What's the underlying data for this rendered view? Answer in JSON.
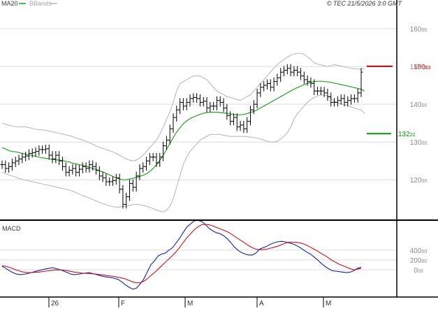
{
  "header": {
    "legend": [
      {
        "label": "MA20",
        "color": "#1fa51f"
      },
      {
        "label": "BBands",
        "color": "#a8a8a8"
      }
    ],
    "stamp": "© TEC 21/5/2026 3:0 GMT"
  },
  "colors": {
    "price_bars": "#000000",
    "ma20": "#1fa51f",
    "bbands": "#b4b4b4",
    "macd_line": "#1020c0",
    "signal_line": "#d01010",
    "resistance": "#cc0000",
    "support": "#009900",
    "grid": "#dcdcdc",
    "frame": "#000000"
  },
  "chart_data": [
    {
      "type": "ohlc",
      "y_ticks": [
        {
          "value": 120,
          "int": "120",
          "dec": "00"
        },
        {
          "value": 130,
          "int": "130",
          "dec": "00"
        },
        {
          "value": 140,
          "int": "140",
          "dec": "00"
        },
        {
          "value": 150,
          "int": "150",
          "dec": "00"
        },
        {
          "value": 160,
          "int": "160",
          "dec": "00"
        }
      ],
      "ylim": [
        109.5,
        165
      ],
      "grid": true,
      "x_labels": [
        "26",
        "F",
        "M",
        "A",
        "M"
      ],
      "resistance": {
        "value": 150.03,
        "int": "150",
        "dec": "03"
      },
      "support": {
        "value": 132.22,
        "int": "132",
        "dec": "22"
      },
      "close": [
        124,
        123,
        123.5,
        124.5,
        125,
        125.5,
        126,
        126.3,
        127,
        127.2,
        127.5,
        128,
        128,
        128.2,
        126.5,
        125.5,
        126.5,
        125,
        123.5,
        122,
        122.5,
        123,
        122,
        122.8,
        123.5,
        123,
        124,
        123.5,
        122.5,
        121,
        120.5,
        119.5,
        119.5,
        119.8,
        120.5,
        117.5,
        113.5,
        115.5,
        119,
        118,
        121,
        123,
        123.5,
        125,
        126,
        126,
        124.5,
        126,
        129,
        130.5,
        133.5,
        136.5,
        138.5,
        140.5,
        139.5,
        140.5,
        141.5,
        141.8,
        141.5,
        140.5,
        140.8,
        139,
        139.5,
        139.5,
        141,
        140.5,
        139,
        137,
        135.5,
        136.5,
        134,
        134.5,
        133.5,
        135.5,
        138.5,
        140,
        143,
        144.5,
        145,
        145.5,
        144.5,
        146,
        147,
        148.5,
        149,
        149.5,
        148.5,
        149,
        148.5,
        147.5,
        146.5,
        146,
        145.5,
        143.5,
        143.5,
        143.5,
        143,
        142,
        140.5,
        140.5,
        141,
        141.5,
        140.5,
        141,
        141.5,
        141.5,
        143,
        148.5
      ],
      "ma20": [
        128.5,
        128.2,
        127.7,
        127.5,
        127.4,
        127.2,
        127,
        126.8,
        126.6,
        126.4,
        126.2,
        126,
        125.8,
        125.7,
        125.5,
        125.4,
        125.3,
        125.2,
        125.1,
        124.9,
        124.7,
        124.4,
        124.2,
        124,
        123.8,
        123.6,
        123.3,
        123,
        122.7,
        122.4,
        122.1,
        121.7,
        121.3,
        120.9,
        120.5,
        120.2,
        120,
        120,
        120.2,
        120.4,
        120.6,
        120.9,
        121.2,
        121.6,
        122.2,
        123,
        124,
        125.2,
        126.5,
        128,
        129.6,
        131.2,
        132.6,
        133.8,
        134.8,
        135.6,
        136.2,
        136.6,
        137,
        137.3,
        137.6,
        137.8,
        137.9,
        137.9,
        137.9,
        137.8,
        137.7,
        137.6,
        137.4,
        137.3,
        137.2,
        137.2,
        137.3,
        137.5,
        137.8,
        138.1,
        138.5,
        139,
        139.5,
        140,
        140.5,
        141,
        141.5,
        142,
        142.5,
        143,
        143.5,
        144,
        144.4,
        144.8,
        145.2,
        145.5,
        145.8,
        146,
        146.1,
        146.1,
        146,
        145.9,
        145.8,
        145.6,
        145.4,
        145.2,
        145,
        144.8,
        144.6,
        144.4,
        144.2,
        144,
        143.5
      ],
      "bb_upper": [
        135,
        134.7,
        134.4,
        134.2,
        134.1,
        134,
        134,
        134,
        133.8,
        133.6,
        133.4,
        133.3,
        133.2,
        133.1,
        132.9,
        132.7,
        132.5,
        132.3,
        132.1,
        131.9,
        131.7,
        131.4,
        131.1,
        130.8,
        130.5,
        130.2,
        129.8,
        129.4,
        129,
        128.6,
        128.3,
        128,
        127.7,
        127.4,
        127,
        126.5,
        126,
        125.5,
        125.2,
        125,
        125.2,
        125.8,
        126.5,
        127.5,
        128.5,
        129.5,
        130.5,
        132,
        134,
        136,
        138,
        140.5,
        143.5,
        145.5,
        146,
        146.5,
        147,
        147.5,
        147.5,
        147.5,
        147,
        146.5,
        145.5,
        144.5,
        143.5,
        143,
        142.5,
        142,
        141.8,
        141.5,
        141.2,
        141,
        141.5,
        142,
        142.5,
        143.5,
        144.5,
        145.5,
        146.5,
        147.5,
        148.5,
        149.5,
        150.5,
        151.2,
        151.8,
        152.5,
        153,
        153.3,
        153.5,
        153.5,
        153.2,
        152.5,
        151.8,
        151,
        150.6,
        150.4,
        150.2,
        150,
        150.2,
        150.5,
        150.3,
        150.1,
        149.9,
        149.7,
        149.5,
        149.4,
        149.3,
        149.2,
        149.5
      ],
      "bb_lower": [
        122,
        121.7,
        121.3,
        121,
        120.7,
        120.4,
        120.1,
        119.9,
        119.7,
        119.5,
        119.3,
        119.1,
        118.9,
        118.7,
        118.5,
        118.3,
        118.1,
        117.9,
        117.7,
        117.5,
        117.3,
        117,
        116.6,
        116.2,
        115.8,
        115.5,
        115.2,
        114.8,
        114.4,
        114,
        113.7,
        113.4,
        113.1,
        112.9,
        112.8,
        112.8,
        112.9,
        113,
        113.2,
        113.4,
        113.5,
        113.4,
        113.2,
        113,
        112.7,
        112.4,
        112,
        111.7,
        111.5,
        112,
        113,
        115,
        118,
        121,
        124,
        126,
        127.5,
        128.5,
        129.5,
        130.5,
        131,
        131.5,
        132,
        132,
        132,
        132,
        131.8,
        131.6,
        131.5,
        131.5,
        131.5,
        131.5,
        131.5,
        131.4,
        131.3,
        131.2,
        131,
        130.8,
        130.5,
        130.2,
        130,
        130,
        130.2,
        130.8,
        131.5,
        132.5,
        134,
        136,
        137.5,
        138.5,
        139.5,
        140.5,
        141.2,
        141.8,
        142.2,
        142.5,
        142.4,
        142.2,
        141.5,
        140.8,
        140.4,
        140.1,
        139.9,
        139.6,
        139.3,
        139,
        138.7,
        138.5,
        137.5
      ]
    },
    {
      "type": "line",
      "title": "MACD",
      "y_ticks": [
        {
          "value": 0,
          "int": "0",
          "dec": "00"
        },
        {
          "value": 200,
          "int": "200",
          "dec": "00"
        },
        {
          "value": 400,
          "int": "400",
          "dec": "00"
        }
      ],
      "ylim": [
        -560,
        1000
      ],
      "series": [
        {
          "name": "macd",
          "values": [
            70,
            30,
            -20,
            -60,
            -90,
            -100,
            -95,
            -80,
            -60,
            -40,
            -20,
            0,
            15,
            30,
            40,
            20,
            0,
            -30,
            -60,
            -90,
            -100,
            -95,
            -80,
            -70,
            -60,
            -80,
            -100,
            -120,
            -140,
            -150,
            -160,
            -180,
            -200,
            -250,
            -310,
            -360,
            -400,
            -380,
            -300,
            -200,
            -50,
            100,
            180,
            280,
            320,
            340,
            400,
            450,
            550,
            650,
            770,
            880,
            940,
            1000,
            1010,
            990,
            930,
            850,
            800,
            760,
            740,
            700,
            640,
            560,
            470,
            400,
            350,
            320,
            300,
            300,
            340,
            420,
            450,
            480,
            520,
            550,
            570,
            580,
            570,
            550,
            530,
            500,
            460,
            410,
            360,
            320,
            260,
            200,
            130,
            70,
            20,
            -20,
            -30,
            -40,
            -50,
            -60,
            -50,
            -20,
            30,
            50
          ],
          "color": "#1020c0"
        },
        {
          "name": "signal",
          "values": [
            80,
            70,
            50,
            20,
            -10,
            -30,
            -50,
            -60,
            -60,
            -55,
            -50,
            -40,
            -30,
            -20,
            -10,
            -5,
            -5,
            -10,
            -20,
            -35,
            -50,
            -60,
            -70,
            -75,
            -80,
            -85,
            -90,
            -100,
            -110,
            -120,
            -130,
            -140,
            -155,
            -170,
            -190,
            -220,
            -250,
            -270,
            -270,
            -240,
            -190,
            -120,
            -60,
            10,
            80,
            150,
            220,
            290,
            370,
            460,
            560,
            660,
            740,
            820,
            880,
            920,
            930,
            920,
            900,
            870,
            840,
            810,
            780,
            740,
            690,
            640,
            590,
            540,
            490,
            450,
            420,
            410,
            410,
            420,
            440,
            460,
            480,
            510,
            540,
            560,
            560,
            560,
            550,
            530,
            500,
            460,
            420,
            380,
            330,
            290,
            240,
            190,
            150,
            110,
            80,
            50,
            20,
            0,
            10,
            30
          ],
          "color": "#d01010"
        }
      ]
    }
  ]
}
